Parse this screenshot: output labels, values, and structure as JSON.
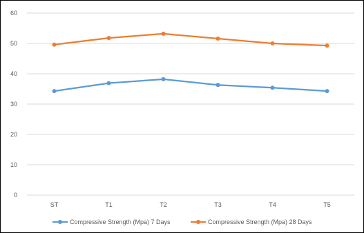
{
  "chart_data": {
    "type": "line",
    "categories": [
      "ST",
      "T1",
      "T2",
      "T3",
      "T4",
      "T5"
    ],
    "series": [
      {
        "name": "Compressive Strength (Mpa) 7 Days",
        "values": [
          34.3,
          36.9,
          38.2,
          36.3,
          35.4,
          34.3
        ],
        "color": "#5b9bd5"
      },
      {
        "name": "Compressive Strength (Mpa) 28 Days",
        "values": [
          49.6,
          51.8,
          53.2,
          51.6,
          50.0,
          49.3
        ],
        "color": "#ed7d31"
      }
    ],
    "ylim": [
      0,
      60
    ],
    "yticks": [
      0,
      10,
      20,
      30,
      40,
      50,
      60
    ],
    "grid": true,
    "gridline_color": "#d9d9d9",
    "legend_position": "bottom"
  }
}
